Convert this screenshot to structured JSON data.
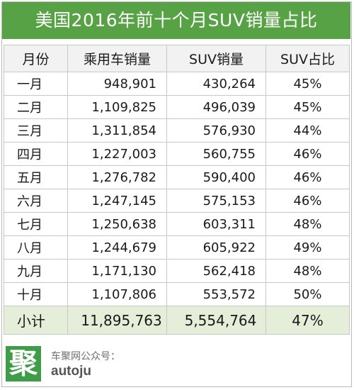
{
  "title": "美国2016年前十个月SUV销量占比",
  "columns": [
    "月份",
    "乘用车销量",
    "SUV销量",
    "SUV占比"
  ],
  "rows": [
    {
      "month": "一月",
      "passenger": "948,901",
      "suv": "430,264",
      "share": "45%"
    },
    {
      "month": "二月",
      "passenger": "1,109,825",
      "suv": "496,039",
      "share": "45%"
    },
    {
      "month": "三月",
      "passenger": "1,311,854",
      "suv": "576,930",
      "share": "44%"
    },
    {
      "month": "四月",
      "passenger": "1,227,003",
      "suv": "560,755",
      "share": "46%"
    },
    {
      "month": "五月",
      "passenger": "1,276,782",
      "suv": "590,400",
      "share": "46%"
    },
    {
      "month": "六月",
      "passenger": "1,247,145",
      "suv": "575,153",
      "share": "46%"
    },
    {
      "month": "七月",
      "passenger": "1,250,638",
      "suv": "603,311",
      "share": "48%"
    },
    {
      "month": "八月",
      "passenger": "1,244,679",
      "suv": "605,922",
      "share": "49%"
    },
    {
      "month": "九月",
      "passenger": "1,171,130",
      "suv": "562,418",
      "share": "48%"
    },
    {
      "month": "十月",
      "passenger": "1,107,806",
      "suv": "553,572",
      "share": "50%"
    }
  ],
  "subtotal": {
    "label": "小计",
    "passenger": "11,895,763",
    "suv": "5,554,764",
    "share": "47%"
  },
  "footer": {
    "logo_char": "聚",
    "label": "车聚网公众号：",
    "account": "autoju"
  },
  "colors": {
    "title_bg": "#57a244",
    "header_bg": "#f2f2f2",
    "subtotal_bg": "#e4eed9",
    "logo_bg": "#3f9d4a"
  }
}
